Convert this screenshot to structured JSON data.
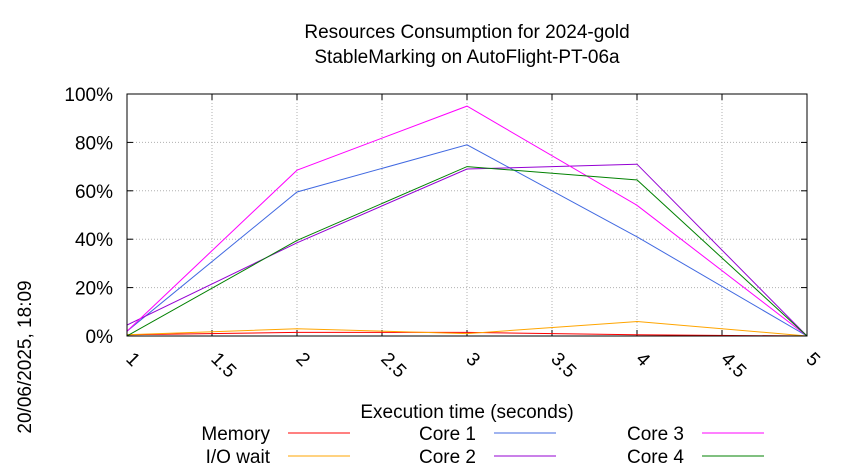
{
  "chart_data": {
    "type": "line",
    "title_line1": "Resources Consumption for 2024-gold",
    "title_line2": "StableMarking on AutoFlight-PT-06a",
    "xlabel": "Execution time (seconds)",
    "ylabel": "",
    "side_label": "20/06/2025, 18:09",
    "xlim": [
      1,
      5
    ],
    "ylim": [
      0,
      100
    ],
    "x_ticks": [
      "1",
      "1.5",
      "2",
      "2.5",
      "3",
      "3.5",
      "4",
      "4.5",
      "5"
    ],
    "x_tick_values": [
      1,
      1.5,
      2,
      2.5,
      3,
      3.5,
      4,
      4.5,
      5
    ],
    "y_ticks": [
      "0%",
      "20%",
      "40%",
      "60%",
      "80%",
      "100%"
    ],
    "y_tick_values": [
      0,
      20,
      40,
      60,
      80,
      100
    ],
    "grid": true,
    "legend_position": "bottom",
    "x": [
      1,
      2,
      3,
      4,
      5
    ],
    "series": [
      {
        "name": "Memory",
        "color": "#ff0000",
        "values": [
          0.5,
          1.5,
          1.5,
          0.5,
          0
        ]
      },
      {
        "name": "I/O wait",
        "color": "#ffa500",
        "values": [
          0.5,
          3,
          1,
          6,
          0
        ]
      },
      {
        "name": "Core 1",
        "color": "#4169e1",
        "values": [
          2,
          59.5,
          79,
          41,
          0
        ]
      },
      {
        "name": "Core 2",
        "color": "#9400d3",
        "values": [
          4.5,
          38.5,
          69,
          71,
          0
        ]
      },
      {
        "name": "Core 3",
        "color": "#ff00ff",
        "values": [
          2,
          68.5,
          95,
          54,
          0
        ]
      },
      {
        "name": "Core 4",
        "color": "#008000",
        "values": [
          0,
          39.5,
          70,
          64.5,
          0
        ]
      }
    ]
  }
}
